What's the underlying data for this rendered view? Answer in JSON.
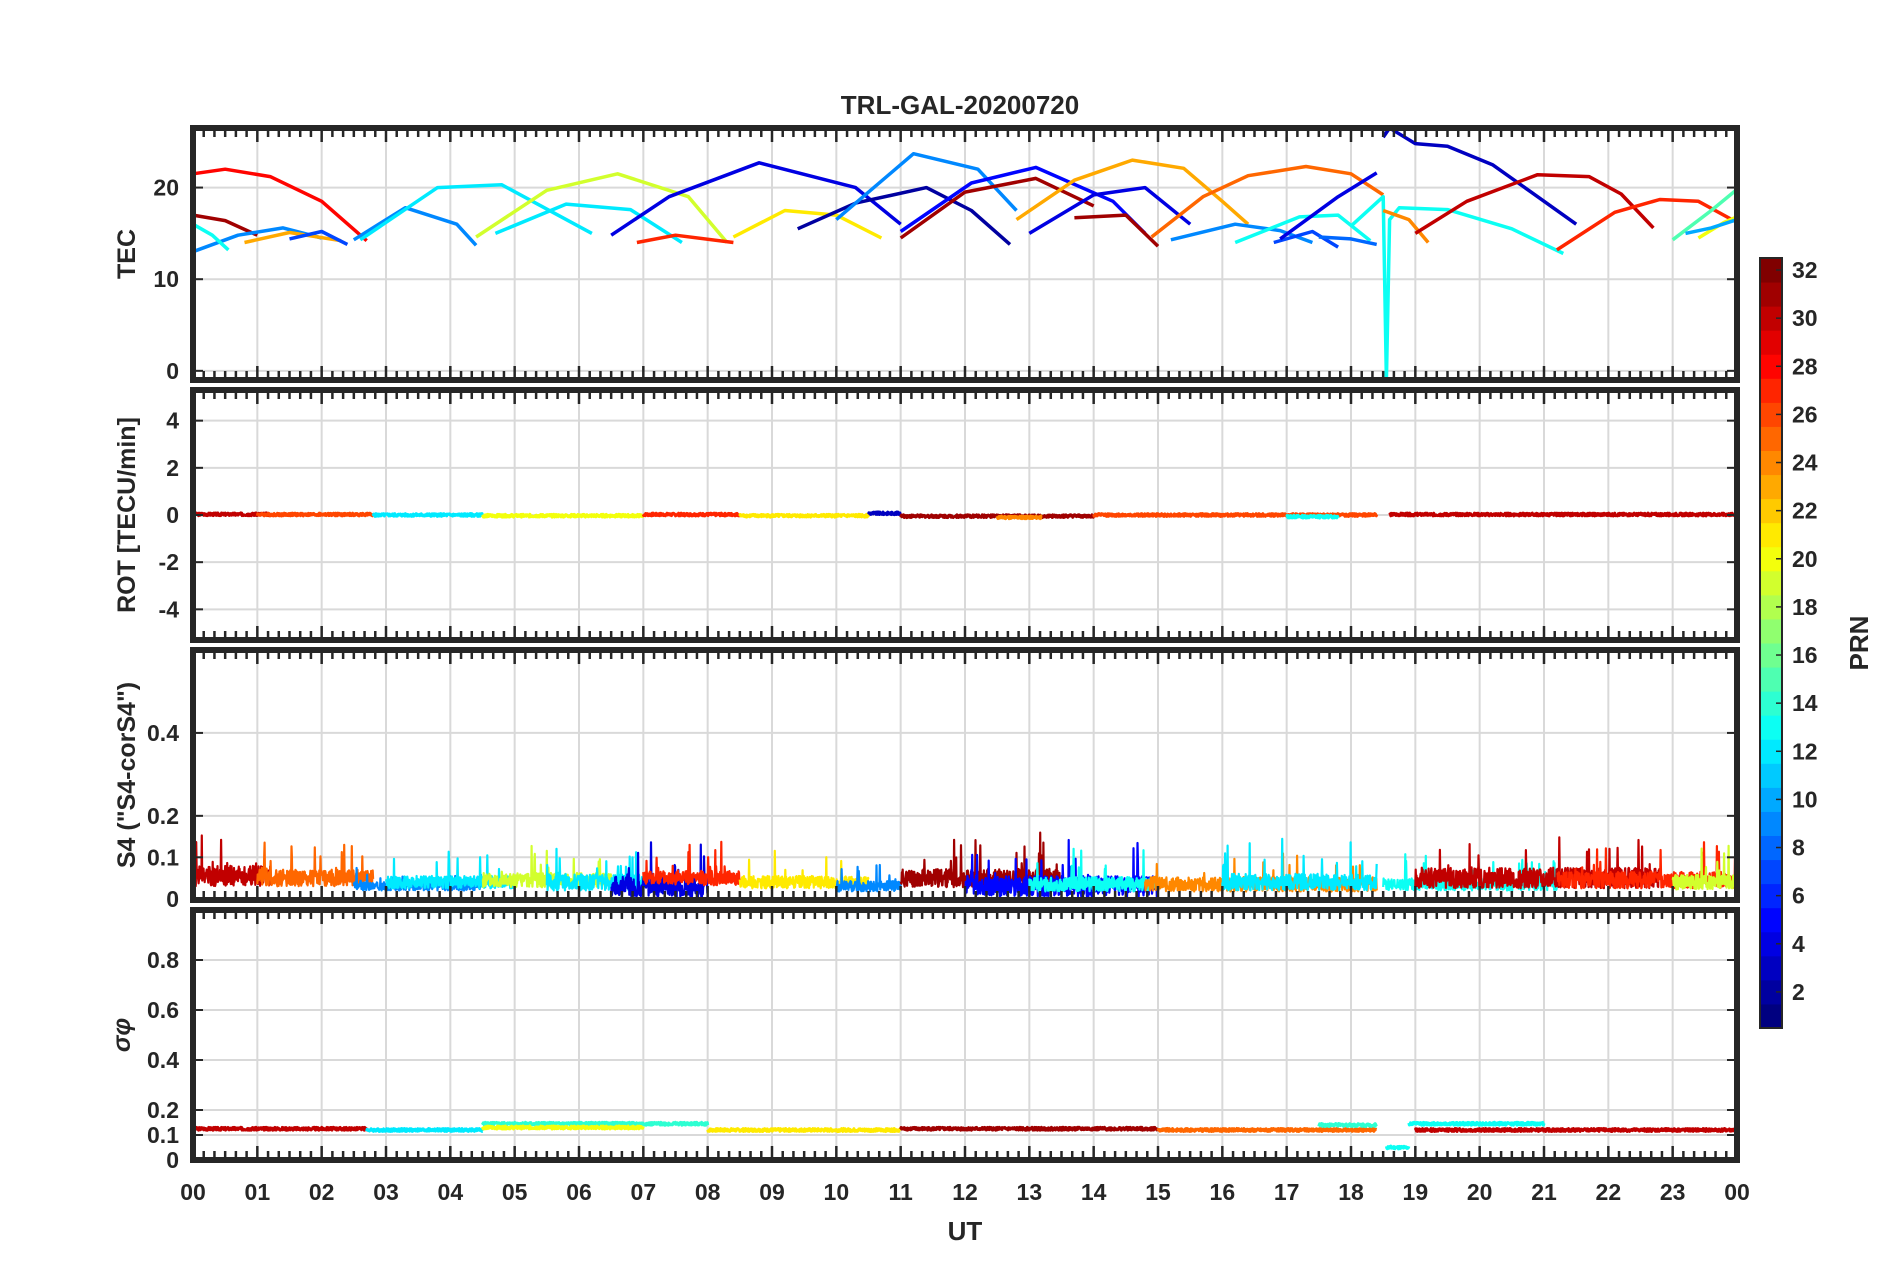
{
  "chart_data": {
    "title": "TRL-GAL-20200720",
    "type": "line",
    "x_axis": {
      "label": "UT",
      "range": [
        0,
        24
      ],
      "tick_labels": [
        "00",
        "01",
        "02",
        "03",
        "04",
        "05",
        "06",
        "07",
        "08",
        "09",
        "10",
        "11",
        "12",
        "13",
        "14",
        "15",
        "16",
        "17",
        "18",
        "19",
        "20",
        "21",
        "22",
        "23",
        "00"
      ]
    },
    "grid": true,
    "colorbar": {
      "label": "PRN",
      "range": [
        1,
        32
      ],
      "ticks": [
        "2",
        "4",
        "6",
        "8",
        "10",
        "12",
        "14",
        "16",
        "18",
        "20",
        "22",
        "24",
        "26",
        "28",
        "30",
        "32"
      ],
      "colormap": "jet",
      "placement": "right"
    },
    "panels": [
      {
        "id": "tec",
        "ylabel": "TEC",
        "ylim": [
          -1,
          26.5
        ],
        "yticks": [
          0,
          10,
          20
        ],
        "ytick_labels": [
          "0",
          "10",
          "20"
        ],
        "series": [
          {
            "prn": 28,
            "x": [
              0.0,
              0.5,
              1.2,
              2.0,
              2.7
            ],
            "y": [
              21.5,
              22.0,
              21.2,
              18.5,
              14.2
            ]
          },
          {
            "prn": 31,
            "x": [
              0.0,
              0.5,
              1.0
            ],
            "y": [
              17.0,
              16.4,
              14.8
            ]
          },
          {
            "prn": 9,
            "x": [
              0.0,
              0.7,
              1.4,
              2.0
            ],
            "y": [
              13.0,
              14.8,
              15.6,
              14.5
            ]
          },
          {
            "prn": 13,
            "x": [
              0.0,
              0.3,
              0.55
            ],
            "y": [
              16.0,
              14.8,
              13.2
            ]
          },
          {
            "prn": 23,
            "x": [
              0.8,
              1.5,
              2.3
            ],
            "y": [
              14.0,
              15.1,
              14.2
            ]
          },
          {
            "prn": 7,
            "x": [
              1.5,
              2.0,
              2.4
            ],
            "y": [
              14.4,
              15.2,
              13.8
            ]
          },
          {
            "prn": 9,
            "x": [
              2.5,
              3.3,
              4.1,
              4.4
            ],
            "y": [
              14.3,
              17.8,
              16.0,
              13.7
            ]
          },
          {
            "prn": 12,
            "x": [
              2.6,
              3.8,
              4.8,
              6.2
            ],
            "y": [
              14.3,
              20.0,
              20.3,
              15.0
            ]
          },
          {
            "prn": 19,
            "x": [
              4.4,
              5.5,
              6.6,
              7.7,
              8.3
            ],
            "y": [
              14.6,
              19.7,
              21.5,
              19.0,
              14.0
            ]
          },
          {
            "prn": 12,
            "x": [
              4.7,
              5.8,
              6.8,
              7.6
            ],
            "y": [
              15.0,
              18.2,
              17.6,
              14.0
            ]
          },
          {
            "prn": 4,
            "x": [
              6.5,
              7.4,
              8.8,
              10.3,
              11.0
            ],
            "y": [
              14.8,
              19.0,
              22.7,
              20.0,
              16.0
            ]
          },
          {
            "prn": 27,
            "x": [
              6.9,
              7.5,
              8.4
            ],
            "y": [
              14.0,
              14.8,
              14.0
            ]
          },
          {
            "prn": 21,
            "x": [
              8.4,
              9.2,
              10.0,
              10.7
            ],
            "y": [
              14.6,
              17.5,
              17.0,
              14.5
            ]
          },
          {
            "prn": 2,
            "x": [
              9.4,
              10.3,
              11.4,
              12.1,
              12.7
            ],
            "y": [
              15.5,
              18.3,
              20.0,
              17.5,
              13.8
            ]
          },
          {
            "prn": 9,
            "x": [
              10.0,
              11.2,
              12.2,
              12.8
            ],
            "y": [
              16.5,
              23.7,
              22.0,
              17.5
            ]
          },
          {
            "prn": 31,
            "x": [
              11.0,
              12.0,
              13.1,
              14.0
            ],
            "y": [
              14.5,
              19.5,
              21.0,
              18.0
            ]
          },
          {
            "prn": 5,
            "x": [
              11.0,
              12.1,
              13.1,
              14.3,
              14.8
            ],
            "y": [
              15.2,
              20.5,
              22.2,
              18.5,
              15.0
            ]
          },
          {
            "prn": 23,
            "x": [
              12.8,
              13.7,
              14.6,
              15.4,
              16.0,
              16.4
            ],
            "y": [
              16.5,
              20.8,
              23.0,
              22.1,
              18.5,
              16.0
            ]
          },
          {
            "prn": 4,
            "x": [
              13.0,
              14.0,
              14.8,
              15.5
            ],
            "y": [
              15.0,
              19.2,
              20.0,
              16.0
            ]
          },
          {
            "prn": 31,
            "x": [
              13.7,
              14.5,
              15.0
            ],
            "y": [
              16.7,
              17.0,
              13.6
            ]
          },
          {
            "prn": 25,
            "x": [
              14.9,
              15.7,
              16.4,
              17.3,
              18.0,
              18.5
            ],
            "y": [
              14.6,
              19.0,
              21.3,
              22.3,
              21.5,
              19.2
            ]
          },
          {
            "prn": 9,
            "x": [
              15.2,
              16.2,
              16.9,
              17.4
            ],
            "y": [
              14.3,
              16.0,
              15.3,
              14.0
            ]
          },
          {
            "prn": 13,
            "x": [
              16.2,
              17.2,
              17.8,
              18.3
            ],
            "y": [
              14.0,
              16.8,
              17.0,
              14.2
            ]
          },
          {
            "prn": 7,
            "x": [
              16.8,
              17.4,
              17.8
            ],
            "y": [
              14.0,
              15.2,
              13.5
            ]
          },
          {
            "prn": 8,
            "x": [
              17.5,
              18.0,
              18.4
            ],
            "y": [
              14.6,
              14.4,
              13.8
            ]
          },
          {
            "prn": 4,
            "x": [
              16.9,
              17.8,
              18.4
            ],
            "y": [
              14.4,
              19.0,
              21.6
            ]
          },
          {
            "prn": 13,
            "x": [
              18.0,
              18.5,
              18.55,
              18.6,
              18.75,
              19.5,
              20.5,
              21.3
            ],
            "y": [
              15.8,
              19.0,
              -1.0,
              16.5,
              17.8,
              17.6,
              15.5,
              12.8
            ]
          },
          {
            "prn": 3,
            "x": [
              18.5,
              18.6,
              19.0,
              19.5,
              20.2,
              20.8,
              21.5
            ],
            "y": [
              25.5,
              26.5,
              24.8,
              24.5,
              22.5,
              19.5,
              16.0
            ]
          },
          {
            "prn": 24,
            "x": [
              18.5,
              18.9,
              19.2
            ],
            "y": [
              17.5,
              16.5,
              14.0
            ]
          },
          {
            "prn": 30,
            "x": [
              19.0,
              19.8,
              20.9,
              21.7,
              22.2,
              22.7
            ],
            "y": [
              15.0,
              18.5,
              21.4,
              21.2,
              19.3,
              15.6
            ]
          },
          {
            "prn": 27,
            "x": [
              21.2,
              22.1,
              22.8,
              23.4,
              24.0
            ],
            "y": [
              13.2,
              17.3,
              18.7,
              18.5,
              16.2
            ]
          },
          {
            "prn": 15,
            "x": [
              23.0,
              23.6,
              24.0
            ],
            "y": [
              14.3,
              17.5,
              19.8
            ]
          },
          {
            "prn": 20,
            "x": [
              23.4,
              23.8,
              24.0
            ],
            "y": [
              14.5,
              16.2,
              16.8
            ]
          },
          {
            "prn": 10,
            "x": [
              23.2,
              23.6,
              24.0
            ],
            "y": [
              15.0,
              15.6,
              16.5
            ]
          }
        ]
      },
      {
        "id": "rot",
        "ylabel": "ROT [TECU/min]",
        "ylim": [
          -5.3,
          5.3
        ],
        "yticks": [
          -4,
          -2,
          0,
          2,
          4
        ],
        "ytick_labels": [
          "-4",
          "-2",
          "0",
          "2",
          "4"
        ],
        "segments": [
          {
            "prn": 30,
            "x0": 0.0,
            "x1": 1.2,
            "level": 0.03
          },
          {
            "prn": 26,
            "x0": 1.0,
            "x1": 2.8,
            "level": 0.02
          },
          {
            "prn": 12,
            "x0": 2.8,
            "x1": 4.5,
            "level": 0.0
          },
          {
            "prn": 20,
            "x0": 4.5,
            "x1": 7.0,
            "level": -0.03
          },
          {
            "prn": 27,
            "x0": 7.0,
            "x1": 8.5,
            "level": 0.02
          },
          {
            "prn": 21,
            "x0": 8.5,
            "x1": 10.5,
            "level": -0.03
          },
          {
            "prn": 3,
            "x0": 10.5,
            "x1": 11.0,
            "level": 0.07
          },
          {
            "prn": 31,
            "x0": 11.0,
            "x1": 14.0,
            "level": -0.05
          },
          {
            "prn": 24,
            "x0": 12.5,
            "x1": 13.2,
            "level": -0.1
          },
          {
            "prn": 26,
            "x0": 14.0,
            "x1": 18.4,
            "level": 0.0
          },
          {
            "prn": 13,
            "x0": 17.0,
            "x1": 17.8,
            "level": -0.07
          },
          {
            "prn": 30,
            "x0": 18.6,
            "x1": 24.0,
            "level": 0.02
          }
        ]
      },
      {
        "id": "s4",
        "ylabel": "S4 (\"S4-corS4\")",
        "ylim": [
          -0.003,
          0.6
        ],
        "yticks": [
          0,
          0.1,
          0.2,
          0.4
        ],
        "ytick_labels": [
          "0",
          "0.1",
          "0.2",
          "0.4"
        ],
        "segments": [
          {
            "prn": 30,
            "x0": 0.0,
            "x1": 1.2,
            "base": 0.055,
            "amp": 0.05,
            "seed": 1
          },
          {
            "prn": 25,
            "x0": 1.0,
            "x1": 2.8,
            "base": 0.05,
            "amp": 0.04,
            "seed": 2
          },
          {
            "prn": 9,
            "x0": 2.5,
            "x1": 4.5,
            "base": 0.03,
            "amp": 0.02,
            "seed": 3
          },
          {
            "prn": 12,
            "x0": 3.0,
            "x1": 5.0,
            "base": 0.04,
            "amp": 0.03,
            "seed": 4
          },
          {
            "prn": 19,
            "x0": 4.5,
            "x1": 6.5,
            "base": 0.045,
            "amp": 0.035,
            "seed": 5
          },
          {
            "prn": 12,
            "x0": 5.5,
            "x1": 7.0,
            "base": 0.04,
            "amp": 0.04,
            "seed": 6
          },
          {
            "prn": 4,
            "x0": 6.5,
            "x1": 8.0,
            "base": 0.03,
            "amp": 0.05,
            "seed": 7
          },
          {
            "prn": 27,
            "x0": 7.0,
            "x1": 8.5,
            "base": 0.05,
            "amp": 0.035,
            "seed": 8
          },
          {
            "prn": 21,
            "x0": 8.5,
            "x1": 10.5,
            "base": 0.04,
            "amp": 0.03,
            "seed": 9
          },
          {
            "prn": 9,
            "x0": 10.0,
            "x1": 11.0,
            "base": 0.03,
            "amp": 0.025,
            "seed": 10
          },
          {
            "prn": 31,
            "x0": 11.0,
            "x1": 13.5,
            "base": 0.05,
            "amp": 0.045,
            "seed": 11
          },
          {
            "prn": 5,
            "x0": 12.0,
            "x1": 15.0,
            "base": 0.03,
            "amp": 0.05,
            "seed": 12
          },
          {
            "prn": 13,
            "x0": 13.0,
            "x1": 15.0,
            "base": 0.035,
            "amp": 0.035,
            "seed": 13
          },
          {
            "prn": 24,
            "x0": 14.8,
            "x1": 18.4,
            "base": 0.035,
            "amp": 0.035,
            "seed": 14
          },
          {
            "prn": 12,
            "x0": 16.0,
            "x1": 18.4,
            "base": 0.04,
            "amp": 0.04,
            "seed": 15
          },
          {
            "prn": 13,
            "x0": 18.5,
            "x1": 21.2,
            "base": 0.035,
            "amp": 0.03,
            "seed": 16
          },
          {
            "prn": 30,
            "x0": 19.0,
            "x1": 22.8,
            "base": 0.05,
            "amp": 0.05,
            "seed": 17
          },
          {
            "prn": 27,
            "x0": 21.2,
            "x1": 24.0,
            "base": 0.045,
            "amp": 0.04,
            "seed": 18
          },
          {
            "prn": 19,
            "x0": 23.0,
            "x1": 24.0,
            "base": 0.04,
            "amp": 0.035,
            "seed": 19
          }
        ]
      },
      {
        "id": "sigma_phi",
        "ylabel": "σφ",
        "ylim": [
          0,
          1.0
        ],
        "yticks": [
          0,
          0.1,
          0.2,
          0.4,
          0.6,
          0.8
        ],
        "ytick_labels": [
          "0",
          "0.1",
          "0.2",
          "0.4",
          "0.6",
          "0.8"
        ],
        "segments": [
          {
            "prn": 30,
            "x0": 0.0,
            "x1": 2.7,
            "level": 0.125
          },
          {
            "prn": 12,
            "x0": 2.7,
            "x1": 4.5,
            "level": 0.12
          },
          {
            "prn": 14,
            "x0": 4.5,
            "x1": 8.0,
            "level": 0.145
          },
          {
            "prn": 20,
            "x0": 4.5,
            "x1": 7.0,
            "level": 0.13
          },
          {
            "prn": 21,
            "x0": 8.0,
            "x1": 11.0,
            "level": 0.12
          },
          {
            "prn": 31,
            "x0": 11.0,
            "x1": 15.0,
            "level": 0.125
          },
          {
            "prn": 25,
            "x0": 15.0,
            "x1": 18.4,
            "level": 0.12
          },
          {
            "prn": 14,
            "x0": 17.5,
            "x1": 18.4,
            "level": 0.14
          },
          {
            "prn": 13,
            "x0": 18.55,
            "x1": 18.9,
            "level": 0.05
          },
          {
            "prn": 13,
            "x0": 18.9,
            "x1": 21.0,
            "level": 0.145
          },
          {
            "prn": 30,
            "x0": 19.0,
            "x1": 24.0,
            "level": 0.12
          }
        ]
      }
    ]
  }
}
